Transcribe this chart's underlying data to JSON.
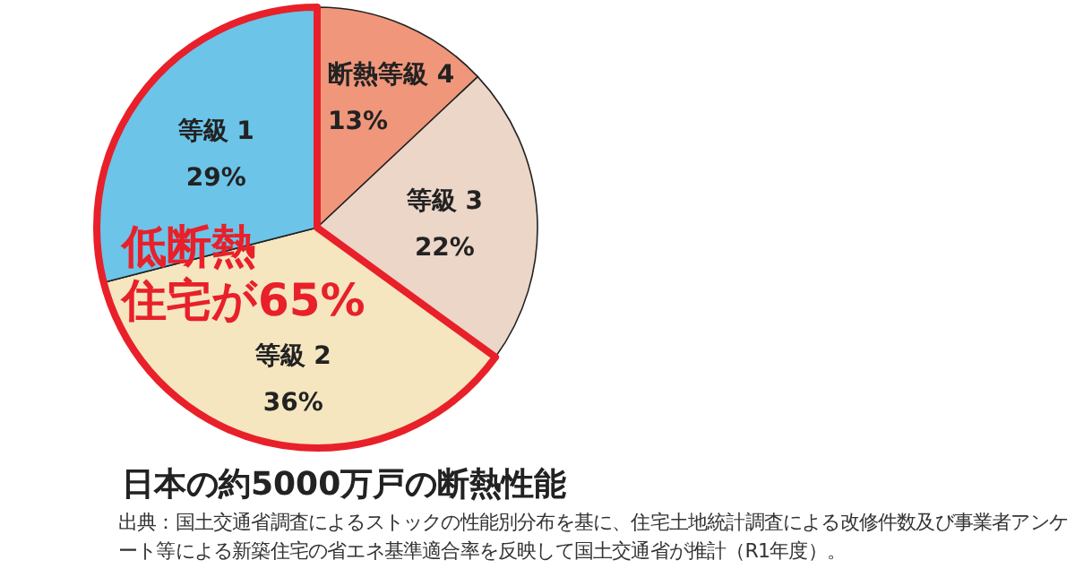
{
  "chart_data": {
    "type": "pie",
    "title": "日本の約5000万戸の断熱性能",
    "categories": [
      "断熱等級 4",
      "等級 3",
      "等級 2",
      "等級 1"
    ],
    "values": [
      13,
      22,
      36,
      29
    ],
    "colors": [
      "#f0967a",
      "#ecd6c8",
      "#f5e6c0",
      "#6cc4e8"
    ],
    "value_labels": [
      "13%",
      "22%",
      "36%",
      "29%"
    ],
    "annotations": [
      "低断熱",
      "住宅が65%",
      "出典：国土交通省調査によるストックの性能別分布を基に、住宅土地統計調査による改修件数及び事業者アンケート等による新築住宅の省エネ基準適合率を反映して国土交通省が推計（R1年度）。"
    ],
    "legend": false
  }
}
